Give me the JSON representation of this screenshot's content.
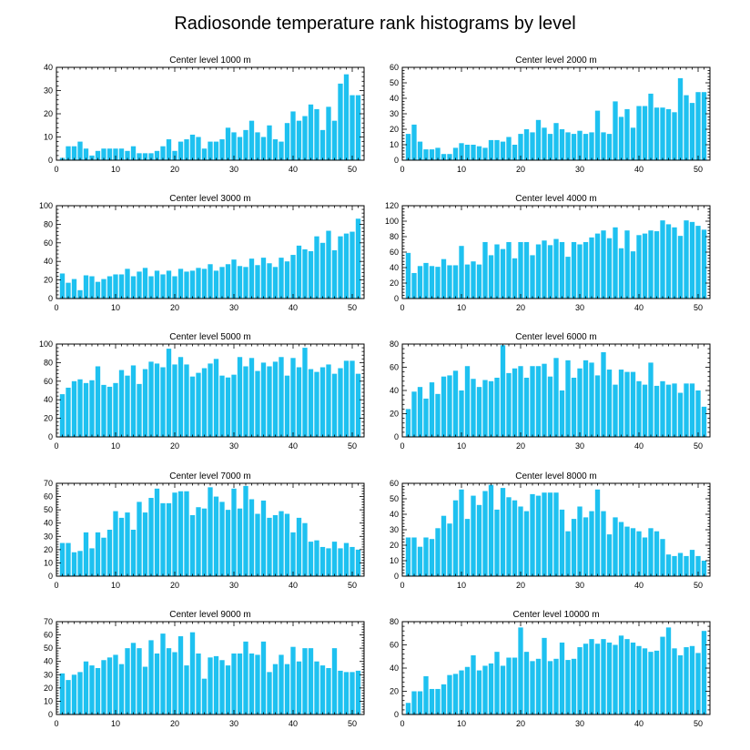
{
  "figure_title": "Radiosonde temperature rank histograms by level",
  "colors": {
    "bar": "#1ec1f0",
    "axis": "#000000",
    "background": "#ffffff"
  },
  "chart_data": [
    {
      "type": "bar",
      "title": "Center level 1000 m",
      "x": [
        1,
        2,
        3,
        4,
        5,
        6,
        7,
        8,
        9,
        10,
        11,
        12,
        13,
        14,
        15,
        16,
        17,
        18,
        19,
        20,
        21,
        22,
        23,
        24,
        25,
        26,
        27,
        28,
        29,
        30,
        31,
        32,
        33,
        34,
        35,
        36,
        37,
        38,
        39,
        40,
        41,
        42,
        43,
        44,
        45,
        46,
        47,
        48,
        49,
        50,
        51
      ],
      "values": [
        1,
        6,
        6,
        8,
        5,
        2,
        4,
        5,
        5,
        5,
        5,
        4,
        6,
        3,
        3,
        3,
        4,
        6,
        9,
        4,
        8,
        9,
        11,
        10,
        5,
        8,
        8,
        9,
        14,
        12,
        10,
        13,
        17,
        12,
        10,
        15,
        9,
        8,
        16,
        21,
        17,
        19,
        24,
        22,
        13,
        23,
        17,
        33,
        37,
        28,
        28
      ],
      "xlim": [
        0,
        52
      ],
      "ylim": [
        0,
        40
      ],
      "xticks": [
        0,
        10,
        20,
        30,
        40,
        50
      ],
      "yticks": [
        0,
        10,
        20,
        30,
        40
      ]
    },
    {
      "type": "bar",
      "title": "Center level 2000 m",
      "x": [
        1,
        2,
        3,
        4,
        5,
        6,
        7,
        8,
        9,
        10,
        11,
        12,
        13,
        14,
        15,
        16,
        17,
        18,
        19,
        20,
        21,
        22,
        23,
        24,
        25,
        26,
        27,
        28,
        29,
        30,
        31,
        32,
        33,
        34,
        35,
        36,
        37,
        38,
        39,
        40,
        41,
        42,
        43,
        44,
        45,
        46,
        47,
        48,
        49,
        50,
        51
      ],
      "values": [
        17,
        23,
        12,
        7,
        7,
        8,
        4,
        4,
        8,
        11,
        10,
        10,
        9,
        8,
        13,
        13,
        12,
        15,
        10,
        17,
        20,
        18,
        26,
        21,
        17,
        24,
        20,
        18,
        17,
        19,
        17,
        18,
        32,
        18,
        17,
        38,
        28,
        33,
        21,
        35,
        35,
        43,
        34,
        34,
        33,
        31,
        53,
        42,
        37,
        44,
        44
      ],
      "xlim": [
        0,
        52
      ],
      "ylim": [
        0,
        60
      ],
      "xticks": [
        0,
        10,
        20,
        30,
        40,
        50
      ],
      "yticks": [
        0,
        10,
        20,
        30,
        40,
        50,
        60
      ]
    },
    {
      "type": "bar",
      "title": "Center level 3000 m",
      "x": [
        1,
        2,
        3,
        4,
        5,
        6,
        7,
        8,
        9,
        10,
        11,
        12,
        13,
        14,
        15,
        16,
        17,
        18,
        19,
        20,
        21,
        22,
        23,
        24,
        25,
        26,
        27,
        28,
        29,
        30,
        31,
        32,
        33,
        34,
        35,
        36,
        37,
        38,
        39,
        40,
        41,
        42,
        43,
        44,
        45,
        46,
        47,
        48,
        49,
        50,
        51
      ],
      "values": [
        27,
        17,
        21,
        9,
        25,
        24,
        18,
        21,
        24,
        26,
        26,
        32,
        24,
        29,
        33,
        24,
        30,
        26,
        30,
        24,
        32,
        29,
        30,
        33,
        32,
        37,
        30,
        34,
        37,
        42,
        35,
        34,
        43,
        36,
        44,
        38,
        34,
        44,
        40,
        47,
        57,
        53,
        51,
        67,
        60,
        73,
        52,
        67,
        70,
        72,
        86
      ],
      "xlim": [
        0,
        52
      ],
      "ylim": [
        0,
        100
      ],
      "xticks": [
        0,
        10,
        20,
        30,
        40,
        50
      ],
      "yticks": [
        0,
        20,
        40,
        60,
        80,
        100
      ]
    },
    {
      "type": "bar",
      "title": "Center level 4000 m",
      "x": [
        1,
        2,
        3,
        4,
        5,
        6,
        7,
        8,
        9,
        10,
        11,
        12,
        13,
        14,
        15,
        16,
        17,
        18,
        19,
        20,
        21,
        22,
        23,
        24,
        25,
        26,
        27,
        28,
        29,
        30,
        31,
        32,
        33,
        34,
        35,
        36,
        37,
        38,
        39,
        40,
        41,
        42,
        43,
        44,
        45,
        46,
        47,
        48,
        49,
        50,
        51
      ],
      "values": [
        59,
        33,
        42,
        46,
        42,
        41,
        51,
        43,
        43,
        68,
        44,
        48,
        44,
        73,
        56,
        70,
        64,
        73,
        52,
        73,
        73,
        56,
        70,
        75,
        69,
        77,
        73,
        54,
        73,
        70,
        73,
        79,
        84,
        88,
        78,
        92,
        65,
        88,
        61,
        82,
        84,
        88,
        87,
        101,
        96,
        92,
        81,
        101,
        99,
        94,
        89
      ],
      "xlim": [
        0,
        52
      ],
      "ylim": [
        0,
        120
      ],
      "xticks": [
        0,
        10,
        20,
        30,
        40,
        50
      ],
      "yticks": [
        0,
        20,
        40,
        60,
        80,
        100,
        120
      ]
    },
    {
      "type": "bar",
      "title": "Center level 5000 m",
      "x": [
        1,
        2,
        3,
        4,
        5,
        6,
        7,
        8,
        9,
        10,
        11,
        12,
        13,
        14,
        15,
        16,
        17,
        18,
        19,
        20,
        21,
        22,
        23,
        24,
        25,
        26,
        27,
        28,
        29,
        30,
        31,
        32,
        33,
        34,
        35,
        36,
        37,
        38,
        39,
        40,
        41,
        42,
        43,
        44,
        45,
        46,
        47,
        48,
        49,
        50,
        51
      ],
      "values": [
        46,
        53,
        60,
        62,
        58,
        61,
        76,
        56,
        54,
        58,
        72,
        66,
        77,
        57,
        73,
        81,
        79,
        75,
        95,
        78,
        86,
        78,
        65,
        69,
        74,
        79,
        84,
        66,
        64,
        67,
        86,
        76,
        85,
        71,
        80,
        76,
        81,
        86,
        66,
        85,
        75,
        96,
        73,
        70,
        75,
        78,
        68,
        74,
        82,
        82,
        68
      ],
      "xlim": [
        0,
        52
      ],
      "ylim": [
        0,
        100
      ],
      "xticks": [
        0,
        10,
        20,
        30,
        40,
        50
      ],
      "yticks": [
        0,
        20,
        40,
        60,
        80,
        100
      ]
    },
    {
      "type": "bar",
      "title": "Center level 6000 m",
      "x": [
        1,
        2,
        3,
        4,
        5,
        6,
        7,
        8,
        9,
        10,
        11,
        12,
        13,
        14,
        15,
        16,
        17,
        18,
        19,
        20,
        21,
        22,
        23,
        24,
        25,
        26,
        27,
        28,
        29,
        30,
        31,
        32,
        33,
        34,
        35,
        36,
        37,
        38,
        39,
        40,
        41,
        42,
        43,
        44,
        45,
        46,
        47,
        48,
        49,
        50,
        51
      ],
      "values": [
        24,
        39,
        43,
        33,
        47,
        37,
        52,
        53,
        57,
        40,
        61,
        50,
        43,
        49,
        48,
        51,
        79,
        55,
        59,
        61,
        51,
        61,
        61,
        63,
        52,
        68,
        40,
        66,
        51,
        59,
        66,
        64,
        53,
        73,
        58,
        45,
        58,
        56,
        56,
        48,
        45,
        64,
        44,
        48,
        45,
        46,
        38,
        46,
        46,
        40,
        26
      ],
      "xlim": [
        0,
        52
      ],
      "ylim": [
        0,
        80
      ],
      "xticks": [
        0,
        10,
        20,
        30,
        40,
        50
      ],
      "yticks": [
        0,
        20,
        40,
        60,
        80
      ]
    },
    {
      "type": "bar",
      "title": "Center level 7000 m",
      "x": [
        1,
        2,
        3,
        4,
        5,
        6,
        7,
        8,
        9,
        10,
        11,
        12,
        13,
        14,
        15,
        16,
        17,
        18,
        19,
        20,
        21,
        22,
        23,
        24,
        25,
        26,
        27,
        28,
        29,
        30,
        31,
        32,
        33,
        34,
        35,
        36,
        37,
        38,
        39,
        40,
        41,
        42,
        43,
        44,
        45,
        46,
        47,
        48,
        49,
        50,
        51
      ],
      "values": [
        25,
        25,
        18,
        19,
        33,
        21,
        33,
        29,
        35,
        49,
        44,
        48,
        35,
        56,
        48,
        59,
        66,
        55,
        55,
        63,
        64,
        64,
        46,
        52,
        51,
        67,
        60,
        56,
        50,
        66,
        51,
        68,
        58,
        47,
        57,
        44,
        46,
        49,
        47,
        33,
        44,
        40,
        26,
        27,
        22,
        21,
        26,
        21,
        25,
        22,
        20
      ],
      "xlim": [
        0,
        52
      ],
      "ylim": [
        0,
        70
      ],
      "xticks": [
        0,
        10,
        20,
        30,
        40,
        50
      ],
      "yticks": [
        0,
        10,
        20,
        30,
        40,
        50,
        60,
        70
      ]
    },
    {
      "type": "bar",
      "title": "Center level 8000 m",
      "x": [
        1,
        2,
        3,
        4,
        5,
        6,
        7,
        8,
        9,
        10,
        11,
        12,
        13,
        14,
        15,
        16,
        17,
        18,
        19,
        20,
        21,
        22,
        23,
        24,
        25,
        26,
        27,
        28,
        29,
        30,
        31,
        32,
        33,
        34,
        35,
        36,
        37,
        38,
        39,
        40,
        41,
        42,
        43,
        44,
        45,
        46,
        47,
        48,
        49,
        50,
        51
      ],
      "values": [
        25,
        25,
        19,
        25,
        24,
        31,
        39,
        34,
        49,
        56,
        37,
        52,
        46,
        55,
        59,
        43,
        57,
        51,
        49,
        45,
        42,
        53,
        52,
        54,
        54,
        54,
        43,
        29,
        37,
        45,
        38,
        42,
        56,
        42,
        27,
        38,
        35,
        32,
        31,
        29,
        25,
        31,
        29,
        24,
        14,
        13,
        15,
        13,
        17,
        13,
        10
      ],
      "xlim": [
        0,
        52
      ],
      "ylim": [
        0,
        60
      ],
      "xticks": [
        0,
        10,
        20,
        30,
        40,
        50
      ],
      "yticks": [
        0,
        10,
        20,
        30,
        40,
        50,
        60
      ]
    },
    {
      "type": "bar",
      "title": "Center level 9000 m",
      "x": [
        1,
        2,
        3,
        4,
        5,
        6,
        7,
        8,
        9,
        10,
        11,
        12,
        13,
        14,
        15,
        16,
        17,
        18,
        19,
        20,
        21,
        22,
        23,
        24,
        25,
        26,
        27,
        28,
        29,
        30,
        31,
        32,
        33,
        34,
        35,
        36,
        37,
        38,
        39,
        40,
        41,
        42,
        43,
        44,
        45,
        46,
        47,
        48,
        49,
        50,
        51
      ],
      "values": [
        31,
        26,
        30,
        32,
        40,
        37,
        35,
        41,
        43,
        45,
        38,
        50,
        54,
        50,
        36,
        56,
        46,
        61,
        50,
        47,
        59,
        37,
        62,
        46,
        27,
        43,
        44,
        41,
        37,
        46,
        46,
        55,
        46,
        45,
        55,
        32,
        38,
        45,
        38,
        51,
        40,
        50,
        50,
        40,
        37,
        35,
        50,
        33,
        32,
        32,
        33
      ],
      "xlim": [
        0,
        52
      ],
      "ylim": [
        0,
        70
      ],
      "xticks": [
        0,
        10,
        20,
        30,
        40,
        50
      ],
      "yticks": [
        0,
        10,
        20,
        30,
        40,
        50,
        60,
        70
      ]
    },
    {
      "type": "bar",
      "title": "Center level 10000 m",
      "x": [
        1,
        2,
        3,
        4,
        5,
        6,
        7,
        8,
        9,
        10,
        11,
        12,
        13,
        14,
        15,
        16,
        17,
        18,
        19,
        20,
        21,
        22,
        23,
        24,
        25,
        26,
        27,
        28,
        29,
        30,
        31,
        32,
        33,
        34,
        35,
        36,
        37,
        38,
        39,
        40,
        41,
        42,
        43,
        44,
        45,
        46,
        47,
        48,
        49,
        50,
        51
      ],
      "values": [
        10,
        20,
        20,
        33,
        22,
        22,
        26,
        34,
        35,
        38,
        41,
        51,
        38,
        42,
        44,
        54,
        42,
        49,
        49,
        75,
        54,
        46,
        48,
        66,
        46,
        48,
        62,
        47,
        48,
        58,
        61,
        65,
        61,
        65,
        62,
        60,
        68,
        65,
        62,
        59,
        57,
        54,
        55,
        67,
        75,
        57,
        51,
        58,
        59,
        53,
        72
      ],
      "xlim": [
        0,
        52
      ],
      "ylim": [
        0,
        80
      ],
      "xticks": [
        0,
        10,
        20,
        30,
        40,
        50
      ],
      "yticks": [
        0,
        20,
        40,
        60,
        80
      ]
    }
  ]
}
